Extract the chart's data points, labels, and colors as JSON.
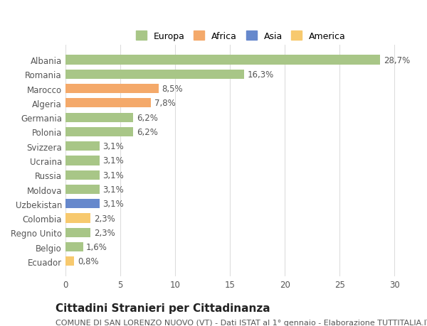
{
  "countries": [
    "Albania",
    "Romania",
    "Marocco",
    "Algeria",
    "Germania",
    "Polonia",
    "Svizzera",
    "Ucraina",
    "Russia",
    "Moldova",
    "Uzbekistan",
    "Colombia",
    "Regno Unito",
    "Belgio",
    "Ecuador"
  ],
  "values": [
    28.7,
    16.3,
    8.5,
    7.8,
    6.2,
    6.2,
    3.1,
    3.1,
    3.1,
    3.1,
    3.1,
    2.3,
    2.3,
    1.6,
    0.8
  ],
  "labels": [
    "28,7%",
    "16,3%",
    "8,5%",
    "7,8%",
    "6,2%",
    "6,2%",
    "3,1%",
    "3,1%",
    "3,1%",
    "3,1%",
    "3,1%",
    "2,3%",
    "2,3%",
    "1,6%",
    "0,8%"
  ],
  "continents": [
    "Europa",
    "Europa",
    "Africa",
    "Africa",
    "Europa",
    "Europa",
    "Europa",
    "Europa",
    "Europa",
    "Europa",
    "Asia",
    "America",
    "Europa",
    "Europa",
    "America"
  ],
  "colors": {
    "Europa": "#a8c687",
    "Africa": "#f4a96a",
    "Asia": "#6688cc",
    "America": "#f7c96e"
  },
  "xlim": [
    0,
    32
  ],
  "xticks": [
    0,
    5,
    10,
    15,
    20,
    25,
    30
  ],
  "title": "Cittadini Stranieri per Cittadinanza",
  "subtitle": "COMUNE DI SAN LORENZO NUOVO (VT) - Dati ISTAT al 1° gennaio - Elaborazione TUTTITALIA.IT",
  "background_color": "#ffffff",
  "grid_color": "#dddddd",
  "bar_height": 0.65,
  "label_fontsize": 8.5,
  "tick_fontsize": 8.5,
  "title_fontsize": 11,
  "subtitle_fontsize": 8,
  "legend_order": [
    "Europa",
    "Africa",
    "Asia",
    "America"
  ]
}
